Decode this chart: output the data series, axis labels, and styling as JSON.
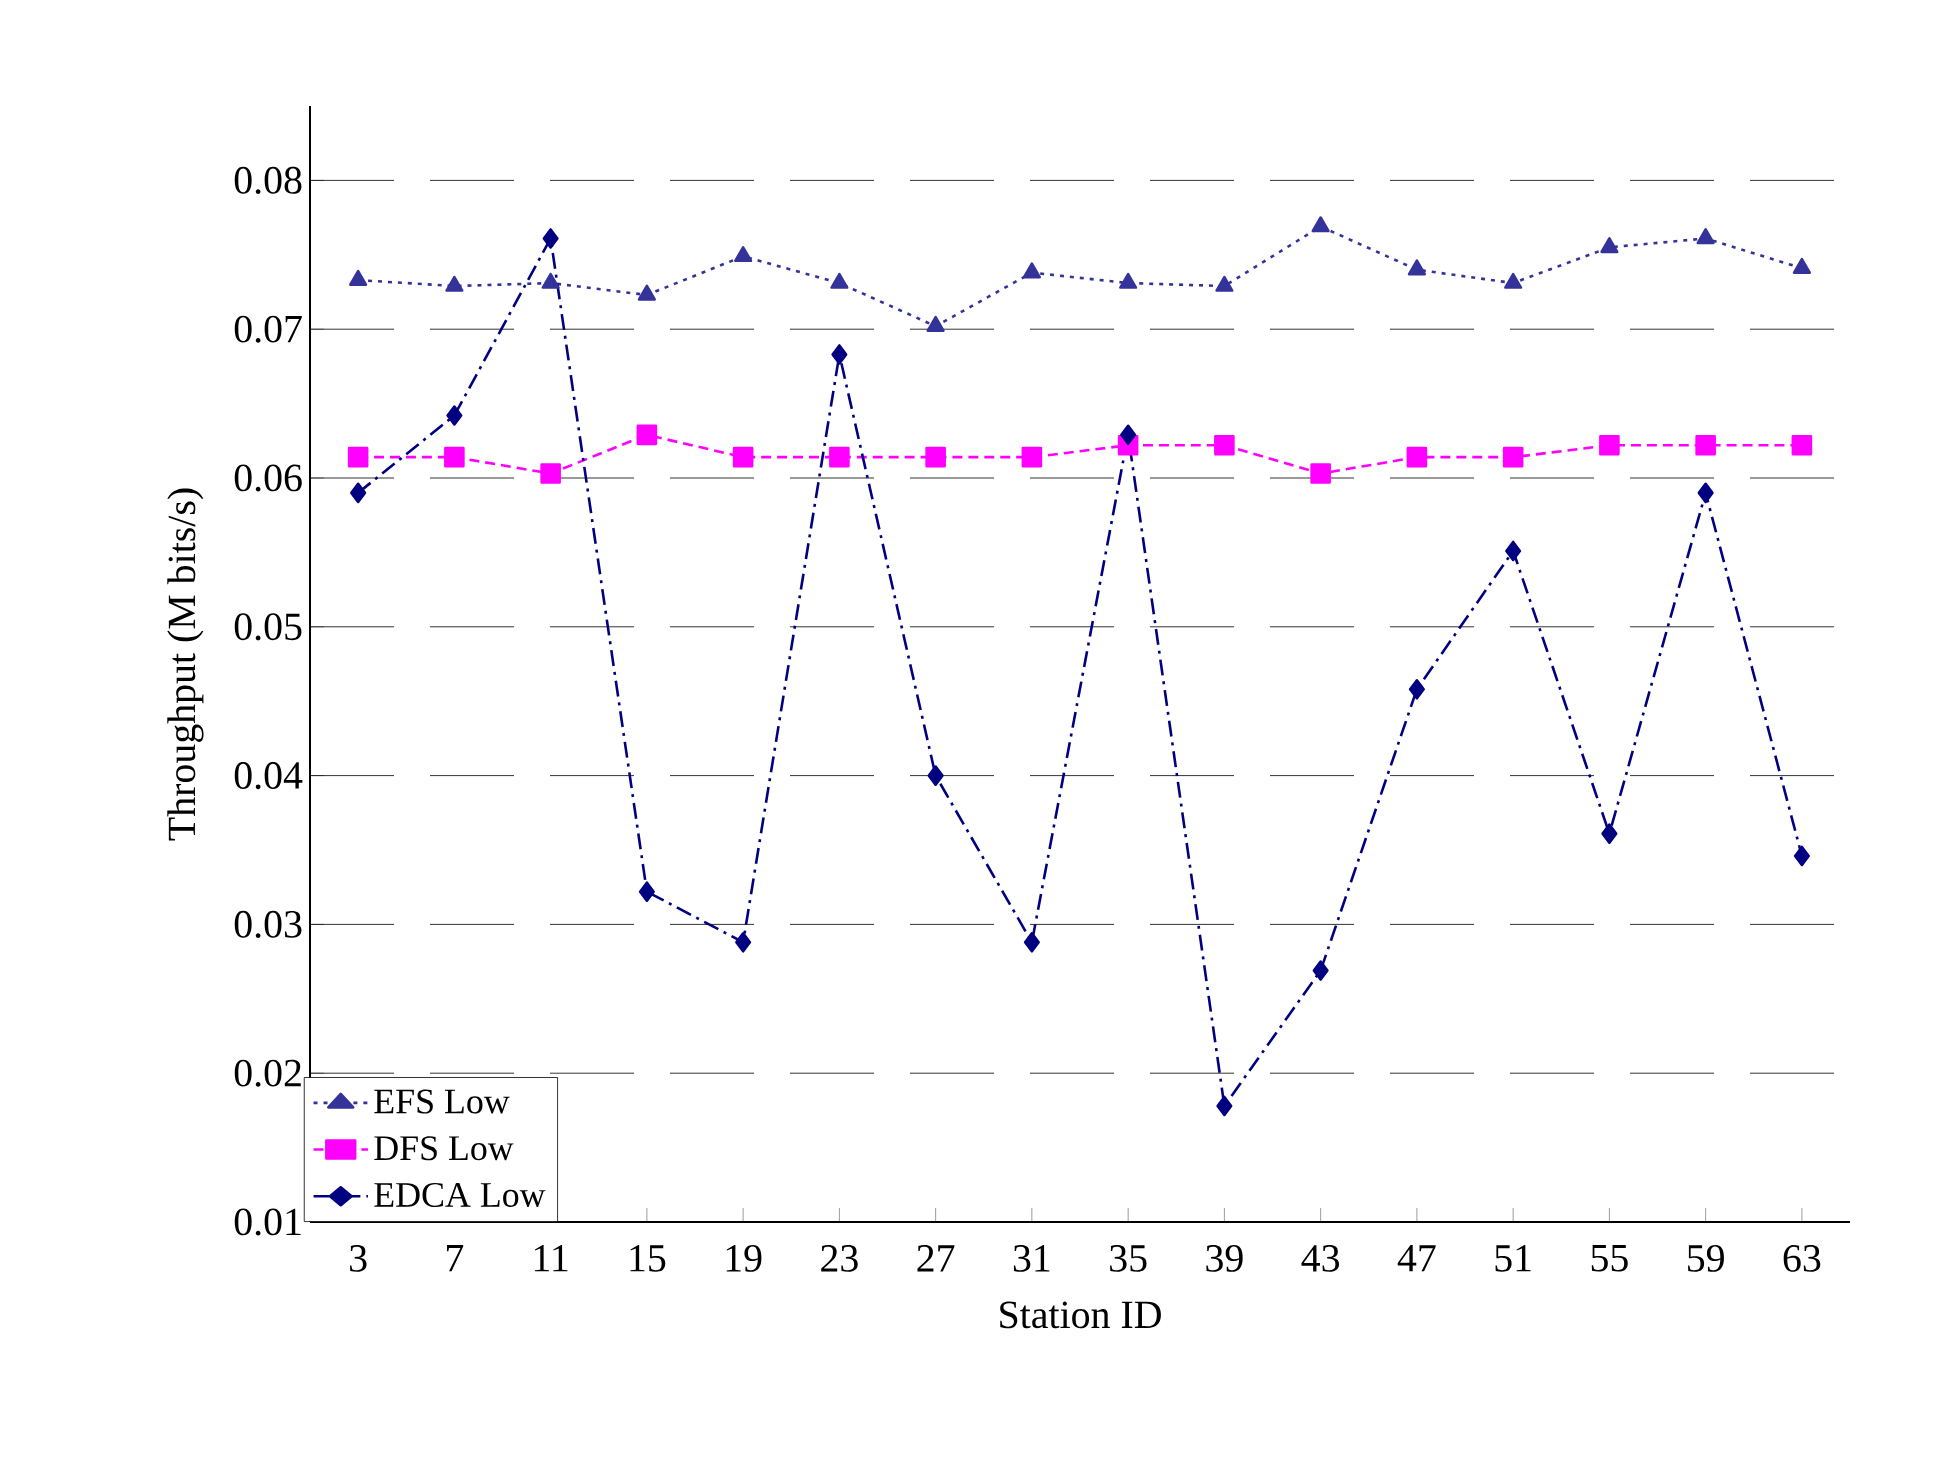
{
  "chart_data": {
    "type": "line",
    "xlabel": "Station ID",
    "ylabel": "Throughput (M bits/s)",
    "categories": [
      "3",
      "7",
      "11",
      "15",
      "19",
      "23",
      "27",
      "31",
      "35",
      "39",
      "43",
      "47",
      "51",
      "55",
      "59",
      "63"
    ],
    "series": [
      {
        "name": "EFS Low",
        "color": "#333399",
        "marker": "triangle",
        "line_style": "dotted",
        "values": [
          0.0733,
          0.0729,
          0.0731,
          0.0723,
          0.0749,
          0.0731,
          0.0702,
          0.0738,
          0.0731,
          0.0729,
          0.0769,
          0.074,
          0.0731,
          0.0755,
          0.0761,
          0.0741
        ]
      },
      {
        "name": "DFS Low",
        "color": "#ff00ff",
        "marker": "square",
        "line_style": "dashed",
        "values": [
          0.0614,
          0.0614,
          0.0603,
          0.0629,
          0.0614,
          0.0614,
          0.0614,
          0.0614,
          0.0622,
          0.0622,
          0.0603,
          0.0614,
          0.0614,
          0.0622,
          0.0622,
          0.0622
        ]
      },
      {
        "name": "EDCA Low",
        "color": "#000080",
        "marker": "diamond",
        "line_style": "dashdot",
        "values": [
          0.059,
          0.0642,
          0.0761,
          0.0322,
          0.0288,
          0.0683,
          0.04,
          0.0288,
          0.0629,
          0.0178,
          0.0269,
          0.0458,
          0.0551,
          0.0361,
          0.059,
          0.0346
        ]
      }
    ],
    "ylim": [
      0.01,
      0.085
    ],
    "yticks": [
      0.01,
      0.02,
      0.03,
      0.04,
      0.05,
      0.06,
      0.07,
      0.08
    ],
    "grid": "y",
    "legend": "bottom left"
  }
}
